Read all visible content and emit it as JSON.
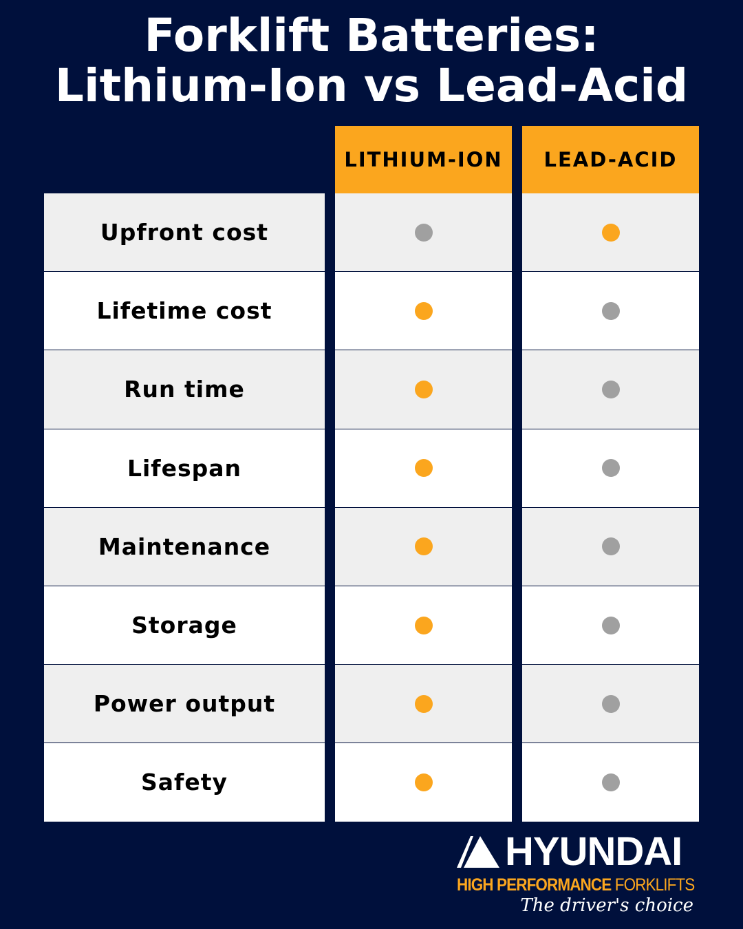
{
  "title": {
    "line1": "Forklift Batteries:",
    "line2": "Lithium-Ion vs Lead-Acid"
  },
  "columns": [
    "LITHIUM-ION",
    "LEAD-ACID"
  ],
  "colors": {
    "background": "#00103c",
    "header": "#fba61e",
    "better": "#fba61e",
    "worse": "#a0a0a0",
    "row_shaded": "#efefef",
    "row_plain": "#ffffff"
  },
  "rows": [
    {
      "label": "Upfront cost",
      "winner": "LEAD-ACID"
    },
    {
      "label": "Lifetime cost",
      "winner": "LITHIUM-ION"
    },
    {
      "label": "Run time",
      "winner": "LITHIUM-ION"
    },
    {
      "label": "Lifespan",
      "winner": "LITHIUM-ION"
    },
    {
      "label": "Maintenance",
      "winner": "LITHIUM-ION"
    },
    {
      "label": "Storage",
      "winner": "LITHIUM-ION"
    },
    {
      "label": "Power output",
      "winner": "LITHIUM-ION"
    },
    {
      "label": "Safety",
      "winner": "LITHIUM-ION"
    }
  ],
  "logo": {
    "brand": "HYUNDAI",
    "tagline_bold": "HIGH PERFORMANCE",
    "tagline_thin": "FORKLIFTS",
    "slogan": "The driver's choice"
  }
}
